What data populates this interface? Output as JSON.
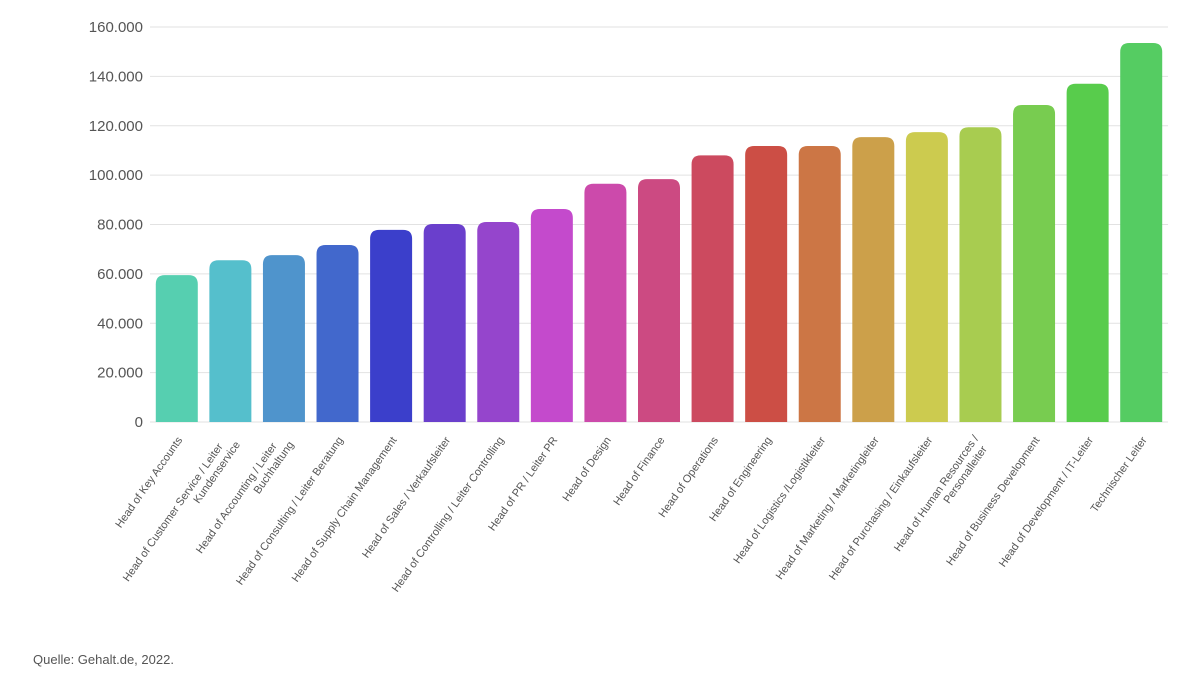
{
  "chart_data": {
    "type": "bar",
    "title": "",
    "xlabel": "",
    "ylabel": "",
    "ylim": [
      0,
      160000
    ],
    "yticks": [
      0,
      20000,
      40000,
      60000,
      80000,
      100000,
      120000,
      140000,
      160000
    ],
    "ytick_labels": [
      "0",
      "20.000",
      "40.000",
      "60.000",
      "80.000",
      "100.000",
      "120.000",
      "140.000",
      "160.000"
    ],
    "grid": true,
    "categories": [
      [
        "Head of Key Accounts"
      ],
      [
        "Head of Customer Service / Leiter",
        "Kundenservice"
      ],
      [
        "Head of Accounting / Leiter",
        "Buchhaltung"
      ],
      [
        "Head of Consulting / Leiter Beratung"
      ],
      [
        "Head of Supply Chain Management"
      ],
      [
        "Head of Sales / Verkaufsleiter"
      ],
      [
        "Head of Controlling / Leiter Controlling"
      ],
      [
        "Head of PR / Leiter PR"
      ],
      [
        "Head of Design"
      ],
      [
        "Head of Finance"
      ],
      [
        "Head of Operations"
      ],
      [
        "Head of Engineering"
      ],
      [
        "Head of Logistics /Logistikleiter"
      ],
      [
        "Head of Marketing / Marketingleiter"
      ],
      [
        "Head of Purchasing / Einkaufsleiter"
      ],
      [
        "Head of Human Resources /",
        "Personalleiter"
      ],
      [
        "Head of Business Development"
      ],
      [
        "Head of Development / IT-Leiter"
      ],
      [
        "Technischer Leiter"
      ]
    ],
    "values": [
      59500,
      65500,
      67600,
      71700,
      77800,
      80200,
      81000,
      86300,
      96500,
      98400,
      108000,
      111800,
      111800,
      115400,
      117400,
      119400,
      128400,
      137000,
      153500
    ],
    "colors": [
      "#56cfb0",
      "#55bfcc",
      "#4f94cc",
      "#4268cc",
      "#3b3fcb",
      "#6a3fcc",
      "#9545cc",
      "#c44acc",
      "#cc4aab",
      "#cc4a82",
      "#cc4a5f",
      "#cc4e45",
      "#cc7645",
      "#cca04a",
      "#cccb4f",
      "#a8cc50",
      "#78cc50",
      "#58cc4c",
      "#55cc62"
    ],
    "source": "Quelle: Gehalt.de, 2022."
  }
}
